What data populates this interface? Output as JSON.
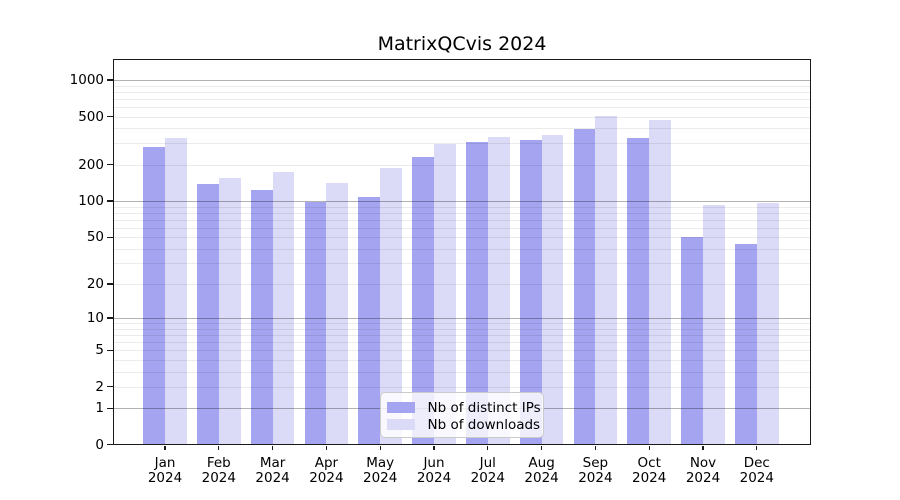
{
  "title": "MatrixQCvis 2024",
  "chart_data": {
    "type": "bar",
    "title": "MatrixQCvis 2024",
    "categories": [
      "Jan",
      "Feb",
      "Mar",
      "Apr",
      "May",
      "Jun",
      "Jul",
      "Aug",
      "Sep",
      "Oct",
      "Nov",
      "Dec"
    ],
    "year_label": "2024",
    "series": [
      {
        "name": "Nb of distinct IPs",
        "color": "#a4a4f0",
        "values": [
          278,
          139,
          124,
          99,
          109,
          230,
          310,
          320,
          395,
          336,
          50,
          44
        ]
      },
      {
        "name": "Nb of downloads",
        "color": "#dbdbf8",
        "values": [
          330,
          157,
          176,
          142,
          189,
          297,
          341,
          350,
          510,
          470,
          92,
          96
        ]
      }
    ],
    "xlabel": "",
    "ylabel": "",
    "yscale": "log1p (pixel position proportional to log10(1+value))",
    "yticks": [
      0,
      1,
      2,
      5,
      10,
      20,
      50,
      100,
      200,
      500,
      1000
    ],
    "ylim": [
      0,
      1468
    ],
    "grid": "horizontal major lines at powers of 10, minor log-decade lines",
    "legend_position": "lower center"
  }
}
